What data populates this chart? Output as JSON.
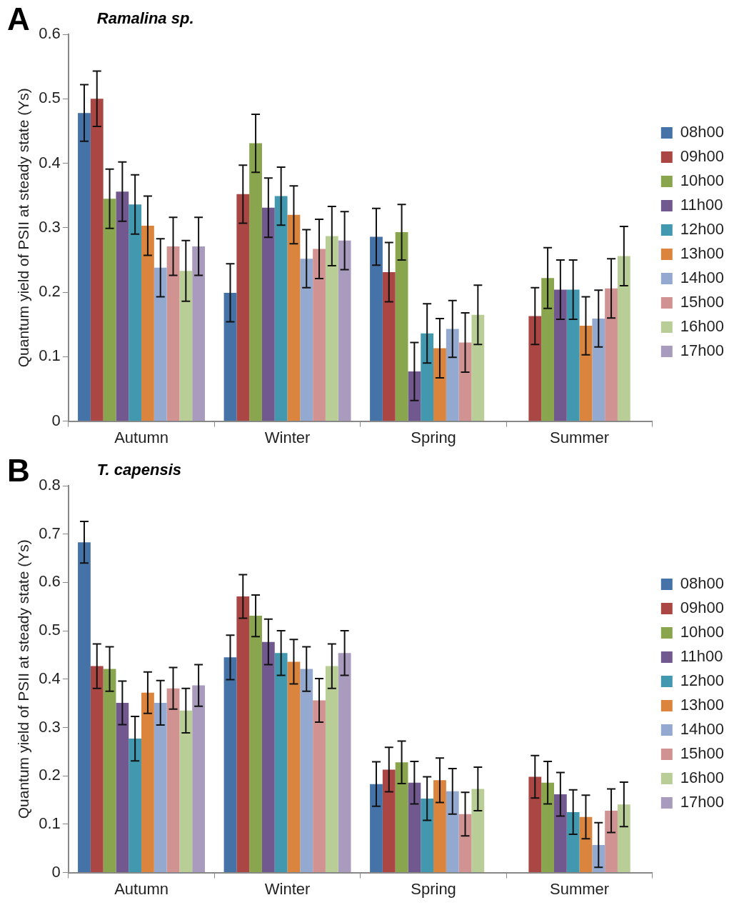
{
  "chart_data": [
    {
      "type": "bar",
      "title": "Ramalina sp.",
      "annotations": [
        "A"
      ],
      "ylabel": "Quantum yield of PSII at steady state (Ys)",
      "categories": [
        "Autumn",
        "Winter",
        "Spring",
        "Summer"
      ],
      "ylim": [
        0,
        0.6
      ],
      "yticks": [
        0,
        0.1,
        0.2,
        0.3,
        0.4,
        0.5,
        0.6
      ],
      "grid": false,
      "legend": "right",
      "series": [
        {
          "name": "08h00",
          "color": "#4572a7",
          "values": [
            0.478,
            0.199,
            0.286,
            null
          ],
          "errors": [
            0.044,
            0.045,
            0.044,
            null
          ]
        },
        {
          "name": "09h00",
          "color": "#aa4643",
          "values": [
            0.5,
            0.352,
            0.231,
            0.163
          ],
          "errors": [
            0.043,
            0.045,
            0.046,
            0.044
          ]
        },
        {
          "name": "10h00",
          "color": "#89a54e",
          "values": [
            0.345,
            0.431,
            0.293,
            0.222
          ],
          "errors": [
            0.046,
            0.045,
            0.043,
            0.047
          ]
        },
        {
          "name": "11h00",
          "color": "#71588f",
          "values": [
            0.356,
            0.331,
            0.077,
            0.204
          ],
          "errors": [
            0.046,
            0.046,
            0.045,
            0.046
          ]
        },
        {
          "name": "12h00",
          "color": "#4198af",
          "values": [
            0.336,
            0.349,
            0.136,
            0.204
          ],
          "errors": [
            0.046,
            0.045,
            0.046,
            0.046
          ]
        },
        {
          "name": "13h00",
          "color": "#db843d",
          "values": [
            0.303,
            0.32,
            0.113,
            0.148
          ],
          "errors": [
            0.046,
            0.045,
            0.046,
            0.045
          ]
        },
        {
          "name": "14h00",
          "color": "#93a9cf",
          "values": [
            0.238,
            0.252,
            0.143,
            0.159
          ],
          "errors": [
            0.045,
            0.045,
            0.044,
            0.044
          ]
        },
        {
          "name": "15h00",
          "color": "#d19392",
          "values": [
            0.271,
            0.267,
            0.122,
            0.206
          ],
          "errors": [
            0.045,
            0.046,
            0.046,
            0.046
          ]
        },
        {
          "name": "16h00",
          "color": "#b9cd96",
          "values": [
            0.233,
            0.287,
            0.165,
            0.256
          ],
          "errors": [
            0.047,
            0.046,
            0.046,
            0.046
          ]
        },
        {
          "name": "17h00",
          "color": "#a99bbd",
          "values": [
            0.271,
            0.28,
            null,
            null
          ],
          "errors": [
            0.045,
            0.045,
            null,
            null
          ]
        }
      ]
    },
    {
      "type": "bar",
      "title": "T. capensis",
      "annotations": [
        "B"
      ],
      "ylabel": "Quantum yield of PSII at steady state (Ys)",
      "categories": [
        "Autumn",
        "Winter",
        "Spring",
        "Summer"
      ],
      "ylim": [
        0,
        0.8
      ],
      "yticks": [
        0,
        0.1,
        0.2,
        0.3,
        0.4,
        0.5,
        0.6,
        0.7,
        0.8
      ],
      "grid": false,
      "legend": "right",
      "series": [
        {
          "name": "08h00",
          "color": "#4572a7",
          "values": [
            0.683,
            0.445,
            0.183,
            null
          ],
          "errors": [
            0.043,
            0.046,
            0.046,
            null
          ]
        },
        {
          "name": "09h00",
          "color": "#aa4643",
          "values": [
            0.427,
            0.571,
            0.213,
            0.198
          ],
          "errors": [
            0.046,
            0.045,
            0.046,
            0.044
          ]
        },
        {
          "name": "10h00",
          "color": "#89a54e",
          "values": [
            0.421,
            0.531,
            0.228,
            0.186
          ],
          "errors": [
            0.046,
            0.043,
            0.044,
            0.044
          ]
        },
        {
          "name": "11h00",
          "color": "#71588f",
          "values": [
            0.351,
            0.477,
            0.186,
            0.162
          ],
          "errors": [
            0.045,
            0.047,
            0.044,
            0.045
          ]
        },
        {
          "name": "12h00",
          "color": "#4198af",
          "values": [
            0.277,
            0.454,
            0.153,
            0.125
          ],
          "errors": [
            0.046,
            0.046,
            0.045,
            0.046
          ]
        },
        {
          "name": "13h00",
          "color": "#db843d",
          "values": [
            0.372,
            0.436,
            0.191,
            0.115
          ],
          "errors": [
            0.043,
            0.046,
            0.046,
            0.045
          ]
        },
        {
          "name": "14h00",
          "color": "#93a9cf",
          "values": [
            0.351,
            0.421,
            0.168,
            0.057
          ],
          "errors": [
            0.046,
            0.046,
            0.047,
            0.046
          ]
        },
        {
          "name": "15h00",
          "color": "#d19392",
          "values": [
            0.381,
            0.356,
            0.121,
            0.128
          ],
          "errors": [
            0.043,
            0.045,
            0.045,
            0.045
          ]
        },
        {
          "name": "16h00",
          "color": "#b9cd96",
          "values": [
            0.335,
            0.427,
            0.173,
            0.141
          ],
          "errors": [
            0.046,
            0.046,
            0.045,
            0.046
          ]
        },
        {
          "name": "17h00",
          "color": "#a99bbd",
          "values": [
            0.387,
            0.454,
            null,
            null
          ],
          "errors": [
            0.043,
            0.046,
            null,
            null
          ]
        }
      ]
    }
  ]
}
